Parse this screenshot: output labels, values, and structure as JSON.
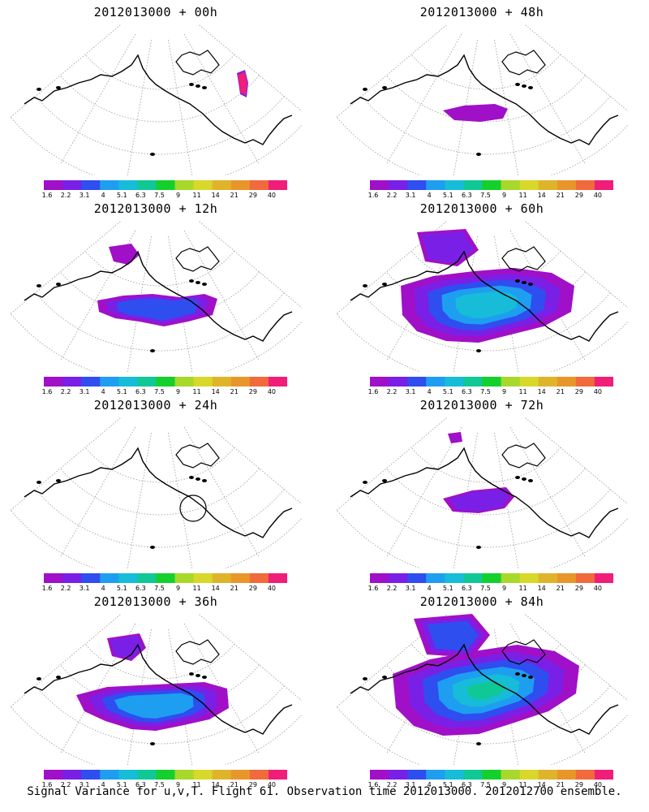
{
  "colorbar": {
    "labels": [
      "1.6",
      "2.2",
      "3.1",
      "4",
      "5.1",
      "6.3",
      "7.5",
      "9",
      "11",
      "14",
      "21",
      "29",
      "40"
    ],
    "colors": [
      "#a010c8",
      "#7a20e6",
      "#2e4ef0",
      "#1e9ef0",
      "#16bcd8",
      "#10c896",
      "#14d02c",
      "#a8d82a",
      "#d8d82a",
      "#e0b42a",
      "#e8962a",
      "#f06a3c",
      "#f01e78"
    ]
  },
  "panels": [
    {
      "title": "2012013000 + 00h",
      "level": 0,
      "circle": false
    },
    {
      "title": "2012013000 + 48h",
      "level": 4,
      "circle": false
    },
    {
      "title": "2012013000 + 12h",
      "level": 1,
      "circle": false
    },
    {
      "title": "2012013000 + 60h",
      "level": 5,
      "circle": false
    },
    {
      "title": "2012013000 + 24h",
      "level": 2,
      "circle": true
    },
    {
      "title": "2012013000 + 72h",
      "level": 6,
      "circle": false
    },
    {
      "title": "2012013000 + 36h",
      "level": 3,
      "circle": false
    },
    {
      "title": "2012013000 + 84h",
      "level": 7,
      "circle": false
    }
  ],
  "caption": "Signal Variance for u,v,T. Flight 61. Observation time 2012013000. 2012012700 ensemble."
}
